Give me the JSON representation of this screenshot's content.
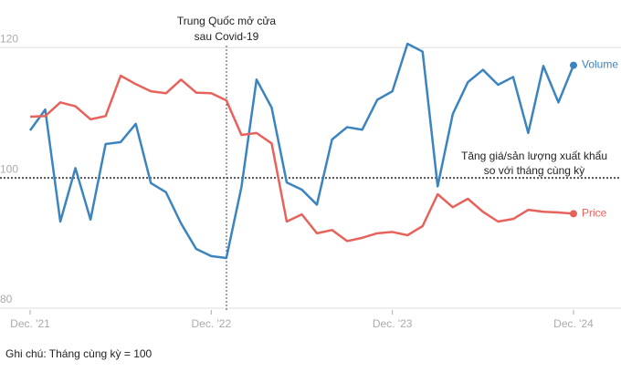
{
  "chart_data": {
    "type": "line",
    "annotation": [
      "Trung Quốc mở cửa",
      "sau Covid-19"
    ],
    "note": [
      "Tăng giá/sản lượng xuất khẩu",
      "so với tháng cùng kỳ"
    ],
    "footnote": "Ghi chú: Tháng cùng kỳ = 100",
    "categories": [
      "Dec. '21",
      null,
      null,
      null,
      null,
      null,
      null,
      null,
      null,
      null,
      null,
      null,
      "Dec. '22",
      null,
      null,
      null,
      null,
      null,
      null,
      null,
      null,
      null,
      null,
      null,
      "Dec. '23",
      null,
      null,
      null,
      null,
      null,
      null,
      null,
      null,
      null,
      null,
      null,
      "Dec. '24"
    ],
    "series": [
      {
        "name": "Volume",
        "color": "#3b84c0",
        "values": [
          107.3,
          110.5,
          93.3,
          101.5,
          93.6,
          105.2,
          105.5,
          108.3,
          99.2,
          97.8,
          93.0,
          89.1,
          88.0,
          87.7,
          98.6,
          115.1,
          110.8,
          99.3,
          98.2,
          95.9,
          105.9,
          107.8,
          107.4,
          112.0,
          113.3,
          120.6,
          119.4,
          98.7,
          109.8,
          114.7,
          116.6,
          114.3,
          115.5,
          106.9,
          117.2,
          111.6,
          117.3
        ]
      },
      {
        "name": "Price",
        "color": "#e8625c",
        "values": [
          109.4,
          109.5,
          111.6,
          111.0,
          109.0,
          109.5,
          115.7,
          114.4,
          113.3,
          113.0,
          115.1,
          113.1,
          113.0,
          111.9,
          106.6,
          106.9,
          105.3,
          93.3,
          94.4,
          91.5,
          92.0,
          90.3,
          90.8,
          91.5,
          91.7,
          91.2,
          92.6,
          97.5,
          95.5,
          96.8,
          94.8,
          93.3,
          93.7,
          95.1,
          94.8,
          94.7,
          94.5
        ]
      }
    ],
    "ylim": [
      80,
      122
    ],
    "yticks": [
      80,
      100,
      120
    ],
    "grid": true
  }
}
